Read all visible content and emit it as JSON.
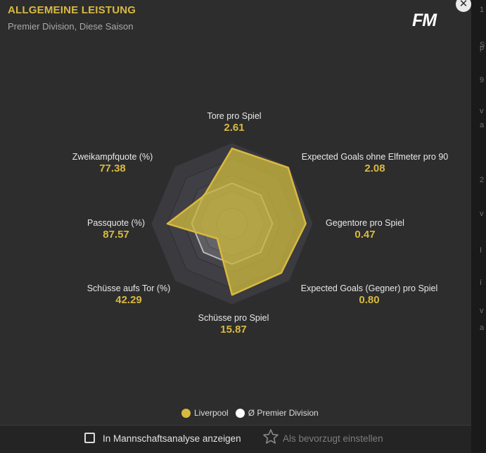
{
  "header": {
    "title": "ALLGEMEINE LEISTUNG",
    "subtitle": "Premier Division, Diese Saison",
    "logo": "FM",
    "close_icon": "✕"
  },
  "colors": {
    "accent": "#d9b940",
    "background": "#2d2d2d",
    "team_fill": "#c9b63e",
    "league_fill": "#ffffff"
  },
  "chart_data": {
    "type": "radar",
    "metrics": [
      {
        "label": "Tore pro Spiel",
        "value": "2.61",
        "team": 0.93,
        "league": 0.5
      },
      {
        "label": "Expected Goals ohne Elfmeter pro 90",
        "value": "2.08",
        "team": 0.98,
        "league": 0.5
      },
      {
        "label": "Gegentore pro Spiel",
        "value": "0.47",
        "team": 0.91,
        "league": 0.5
      },
      {
        "label": "Expected Goals (Gegner) pro Spiel",
        "value": "0.80",
        "team": 0.86,
        "league": 0.5
      },
      {
        "label": "Schüsse pro Spiel",
        "value": "15.87",
        "team": 0.88,
        "league": 0.5
      },
      {
        "label": "Schüsse aufs Tor (%)",
        "value": "42.29",
        "team": 0.26,
        "league": 0.5
      },
      {
        "label": "Passquote (%)",
        "value": "87.57",
        "team": 0.8,
        "league": 0.5
      },
      {
        "label": "Zweikampfquote (%)",
        "value": "77.38",
        "team": 0.49,
        "league": 0.5
      }
    ],
    "series": [
      {
        "name": "Liverpool",
        "color": "#d9b940"
      },
      {
        "name": "Ø Premier Division",
        "color": "#ffffff"
      }
    ]
  },
  "footer": {
    "checkbox_label": "In Mannschaftsanalyse anzeigen",
    "checkbox_checked": false,
    "favorite_label": "Als bevorzugt einstellen",
    "favorite_icon": "star-icon"
  },
  "right_strip": [
    "1",
    "S",
    "p",
    "9",
    "v",
    "a",
    "2",
    "v",
    "I",
    "í",
    "v",
    "a"
  ]
}
